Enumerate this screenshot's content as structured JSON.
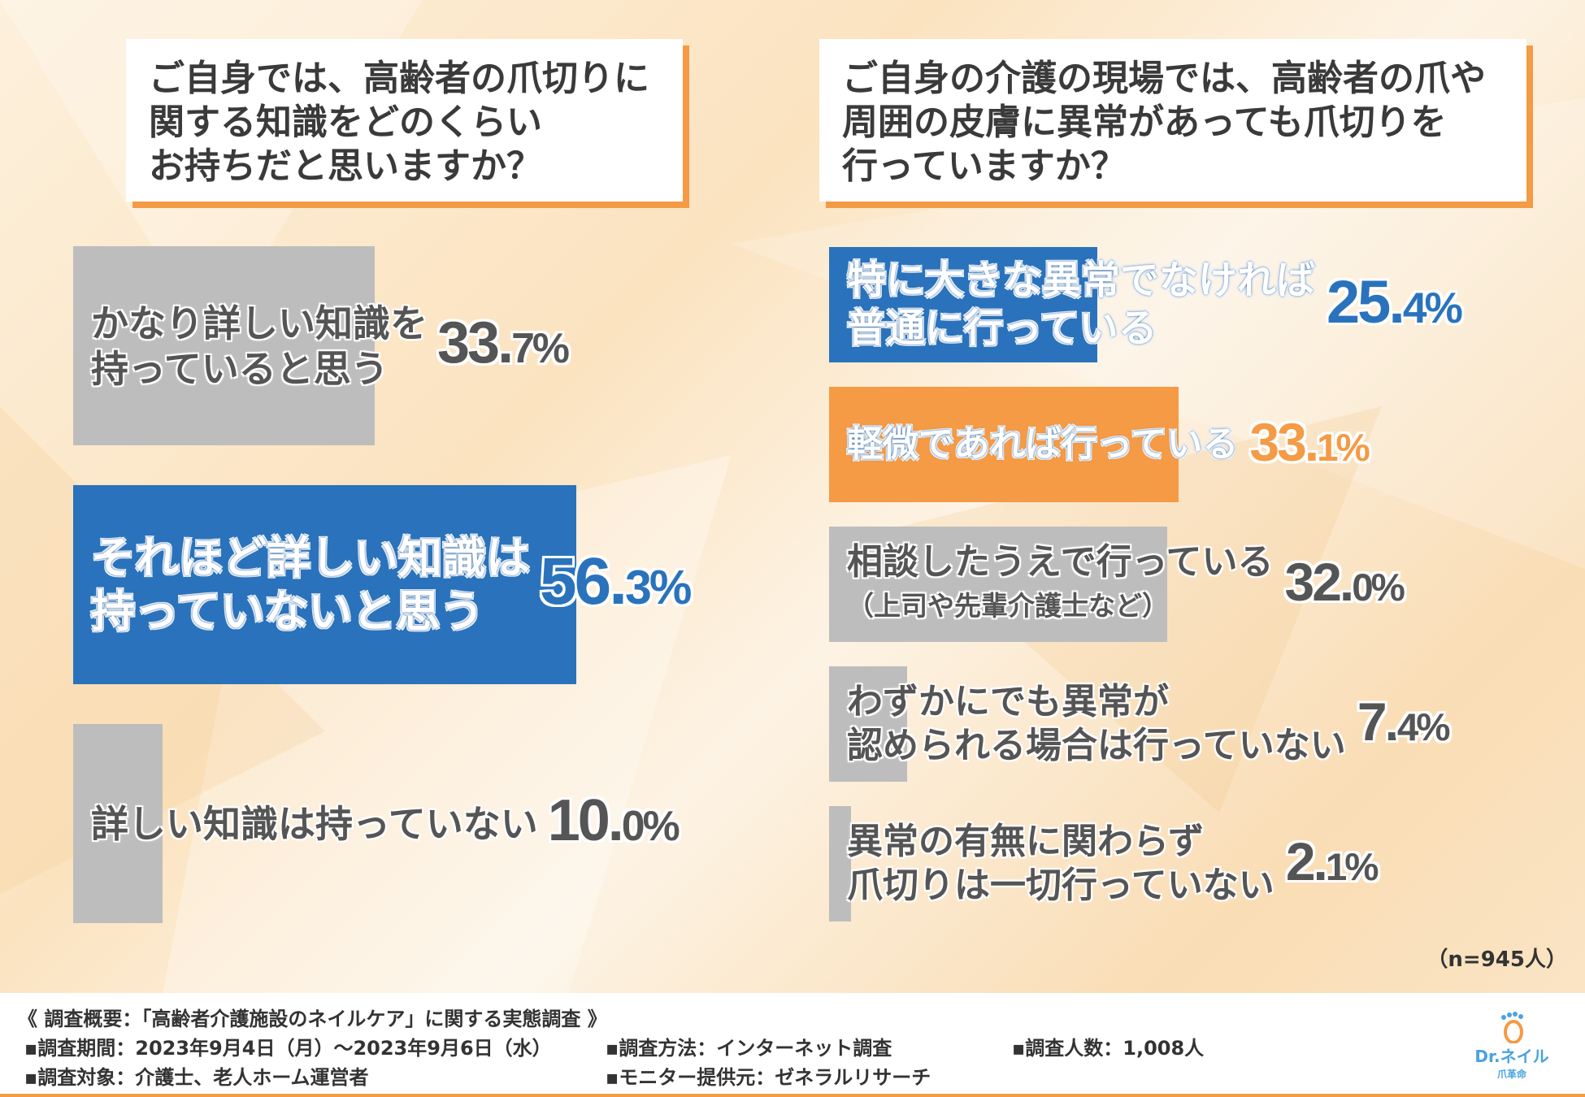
{
  "left_question": {
    "lines": [
      "ご自身では、高齢者の爪切りに",
      "関する知識をどのくらい",
      "お持ちだと思いますか？"
    ]
  },
  "right_question": {
    "lines": [
      "ご自身の介護の現場では、高齢者の爪や",
      "周囲の皮膚に異常があっても爪切りを",
      "行っていますか？"
    ]
  },
  "chart_data": [
    {
      "type": "bar",
      "orientation": "horizontal",
      "title": "ご自身では、高齢者の爪切りに関する知識をどのくらいお持ちだと思いますか？",
      "categories": [
        "かなり詳しい知識を持っていると思う",
        "それほど詳しい知識は持っていないと思う",
        "詳しい知識は持っていない"
      ],
      "values": [
        33.7,
        56.3,
        10.0
      ],
      "unit": "%",
      "label_lines": [
        [
          "かなり詳しい知識を",
          "持っていると思う"
        ],
        [
          "それほど詳しい知識は",
          "持っていないと思う"
        ],
        [
          "詳しい知識は持っていない"
        ]
      ],
      "value_labels": [
        [
          "33.",
          "7%"
        ],
        [
          "56.",
          "3%"
        ],
        [
          "10.",
          "0%"
        ]
      ],
      "colors": [
        "#bdbdbd",
        "#2a73bc",
        "#bdbdbd"
      ]
    },
    {
      "type": "bar",
      "orientation": "horizontal",
      "title": "ご自身の介護の現場では、高齢者の爪や周囲の皮膚に異常があっても爪切りを行っていますか？",
      "categories": [
        "特に大きな異常でなければ普通に行っている",
        "軽微であれば行っている",
        "相談したうえで行っている（上司や先輩介護士など）",
        "わずかにでも異常が認められる場合は行っていない",
        "異常の有無に関わらず爪切りは一切行っていない"
      ],
      "values": [
        25.4,
        33.1,
        32.0,
        7.4,
        2.1
      ],
      "unit": "%",
      "label_lines": [
        [
          "特に大きな異常でなければ",
          "普通に行っている"
        ],
        [
          "軽微であれば行っている"
        ],
        [
          "相談したうえで行っている",
          "（上司や先輩介護士など）"
        ],
        [
          "わずかにでも異常が",
          "認められる場合は行っていない"
        ],
        [
          "異常の有無に関わらず",
          "爪切りは一切行っていない"
        ]
      ],
      "value_labels": [
        [
          "25.",
          "4%"
        ],
        [
          "33.",
          "1%"
        ],
        [
          "32.",
          "0%"
        ],
        [
          "7.",
          "4%"
        ],
        [
          "2.",
          "1%"
        ]
      ],
      "colors": [
        "#2a73bc",
        "#f59a45",
        "#bdbdbd",
        "#bdbdbd",
        "#bdbdbd"
      ]
    }
  ],
  "sample_size": "（n=945人）",
  "footer": {
    "title": "《 調査概要：「高齢者介護施設のネイルケア」に関する実態調査 》",
    "period": "▪調査期間：2023年9月4日（月）～2023年9月6日（水）",
    "method": "▪調査方法：インターネット調査",
    "count": "▪調査人数：1,008人",
    "target": "▪調査対象：介護士、老人ホーム運営者",
    "provider": "▪モニター提供元：ゼネラルリサーチ"
  },
  "logo": {
    "text": "Dr.ネイル",
    "sub": "爪革命"
  },
  "colors": {
    "blue": "#2a73bc",
    "orange": "#f59a45",
    "gray": "#bdbdbd",
    "text": "#555555"
  }
}
